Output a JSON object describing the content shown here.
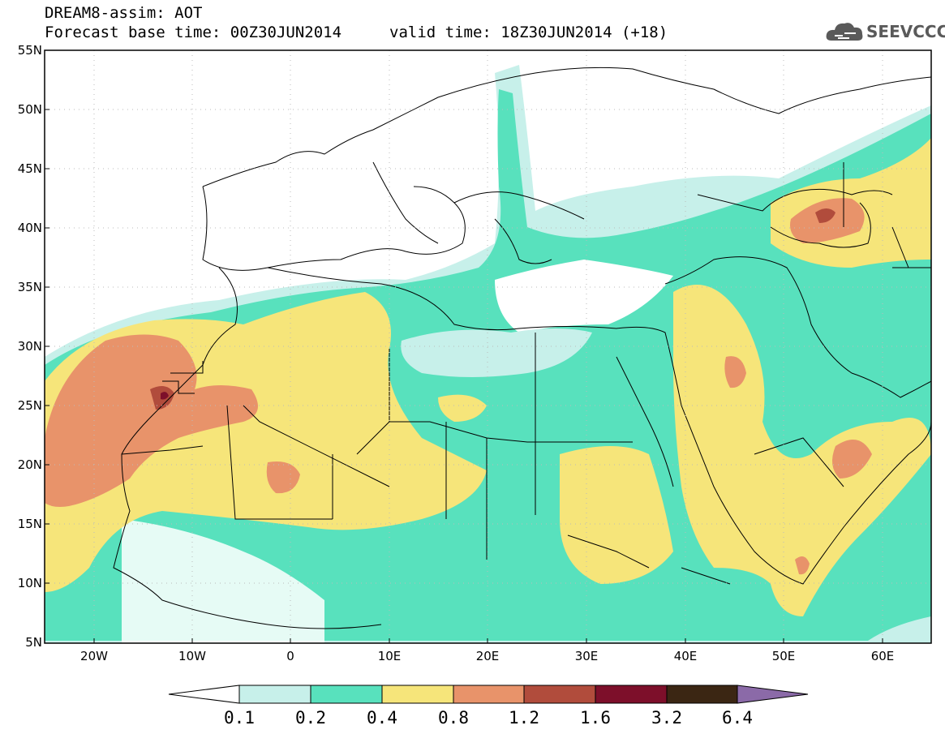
{
  "header": {
    "title_line1": "DREAM8-assim: AOT",
    "title_line2": "Forecast base time: 00Z30JUN2014",
    "valid_time": "valid time: 18Z30JUN2014 (+18)",
    "logo_text": "SEEVCCC"
  },
  "map": {
    "lat_labels": [
      "55N",
      "50N",
      "45N",
      "40N",
      "35N",
      "30N",
      "25N",
      "20N",
      "15N",
      "10N",
      "5N"
    ],
    "lon_labels": [
      "20W",
      "10W",
      "0",
      "10E",
      "20E",
      "30E",
      "40E",
      "50E",
      "60E"
    ],
    "grid": "dotted"
  },
  "colorbar": {
    "labels": [
      "0.1",
      "0.2",
      "0.4",
      "0.8",
      "1.2",
      "1.6",
      "3.2",
      "6.4"
    ],
    "colors": [
      "#ffffff",
      "#c7f0ea",
      "#58e1bd",
      "#f6e57a",
      "#e8936a",
      "#b14c3c",
      "#7d0f2a",
      "#3b2613",
      "#8b6aa8"
    ]
  }
}
